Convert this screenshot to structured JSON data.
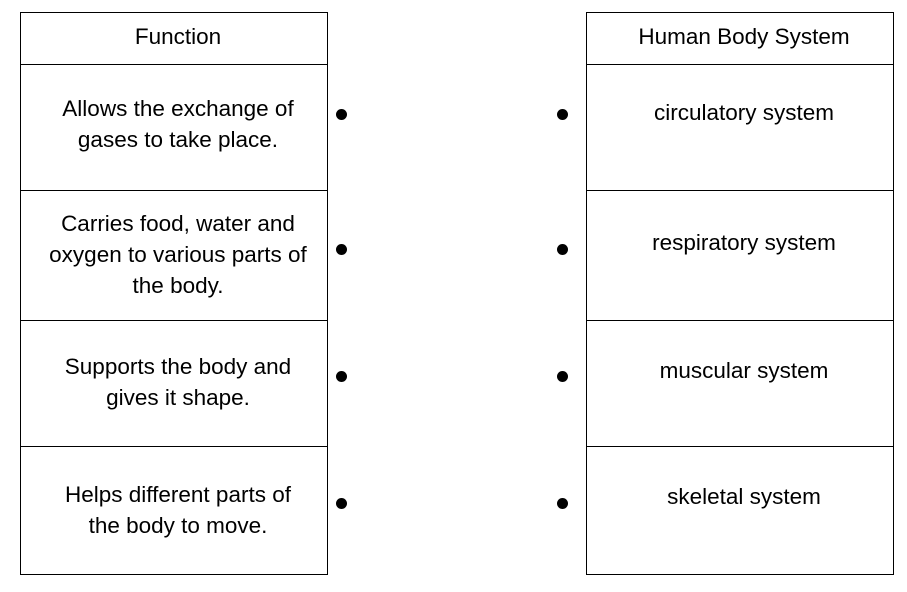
{
  "function_column": {
    "header": "Function",
    "rows": [
      {
        "line1": "Allows the exchange of",
        "line2": "gases to take place.",
        "line3": ""
      },
      {
        "line1": "Carries food, water and",
        "line2": "oxygen to various parts of",
        "line3": "the body."
      },
      {
        "line1": "Supports the body and",
        "line2": "gives it shape.",
        "line3": ""
      },
      {
        "line1": "Helps different parts of",
        "line2": "the body to move.",
        "line3": ""
      }
    ]
  },
  "system_column": {
    "header": "Human Body System",
    "rows": [
      {
        "label": "circulatory system"
      },
      {
        "label": "respiratory system"
      },
      {
        "label": "muscular system"
      },
      {
        "label": "skeletal system"
      }
    ]
  }
}
